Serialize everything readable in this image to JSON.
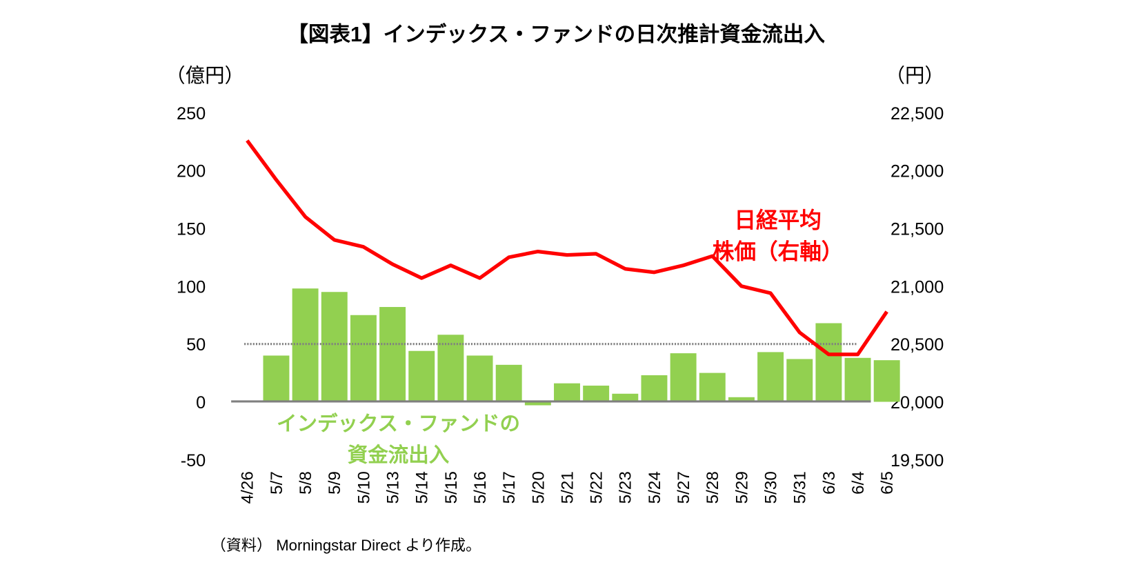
{
  "chart_data": {
    "type": "bar+line",
    "title": "【図表1】インデックス・ファンドの日次推計資金流出入",
    "ylabel_left": "（億円）",
    "ylabel_right": "（円）",
    "categories": [
      "4/26",
      "5/7",
      "5/8",
      "5/9",
      "5/10",
      "5/13",
      "5/14",
      "5/15",
      "5/16",
      "5/17",
      "5/20",
      "5/21",
      "5/22",
      "5/23",
      "5/24",
      "5/27",
      "5/28",
      "5/29",
      "5/30",
      "5/31",
      "6/3",
      "6/4",
      "6/5"
    ],
    "series": [
      {
        "name": "インデックス・ファンドの資金流出入",
        "axis": "left",
        "type": "bar",
        "color": "#92d050",
        "values": [
          0,
          40,
          98,
          95,
          75,
          82,
          44,
          58,
          40,
          32,
          -3,
          16,
          14,
          7,
          23,
          42,
          25,
          4,
          43,
          37,
          68,
          38,
          36
        ]
      },
      {
        "name": "日経平均株価（右軸）",
        "axis": "right",
        "type": "line",
        "color": "#ff0000",
        "values": [
          22260,
          21920,
          21600,
          21400,
          21340,
          21190,
          21070,
          21180,
          21070,
          21250,
          21300,
          21270,
          21280,
          21150,
          21120,
          21180,
          21260,
          21000,
          20940,
          20600,
          20410,
          20410,
          20780
        ]
      }
    ],
    "reference_line": {
      "axis": "left",
      "value": 50,
      "style": "dotted"
    },
    "left_axis": {
      "ylim": [
        -50,
        250
      ],
      "ticks": [
        "250",
        "200",
        "150",
        "100",
        "50",
        "0",
        "-50"
      ],
      "tick_values": [
        250,
        200,
        150,
        100,
        50,
        0,
        -50
      ]
    },
    "right_axis": {
      "ylim": [
        19500,
        22500
      ],
      "ticks": [
        "22,500",
        "22,000",
        "21,500",
        "21,000",
        "20,500",
        "20,000",
        "19,500"
      ],
      "tick_values": [
        22500,
        22000,
        21500,
        21000,
        20500,
        20000,
        19500
      ]
    },
    "annotations": {
      "line_label_1": "日経平均",
      "line_label_2": "株価（右軸）",
      "bar_label_1": "インデックス・ファンドの",
      "bar_label_2": "資金流出入"
    },
    "source": "（資料） Morningstar Direct より作成。"
  }
}
